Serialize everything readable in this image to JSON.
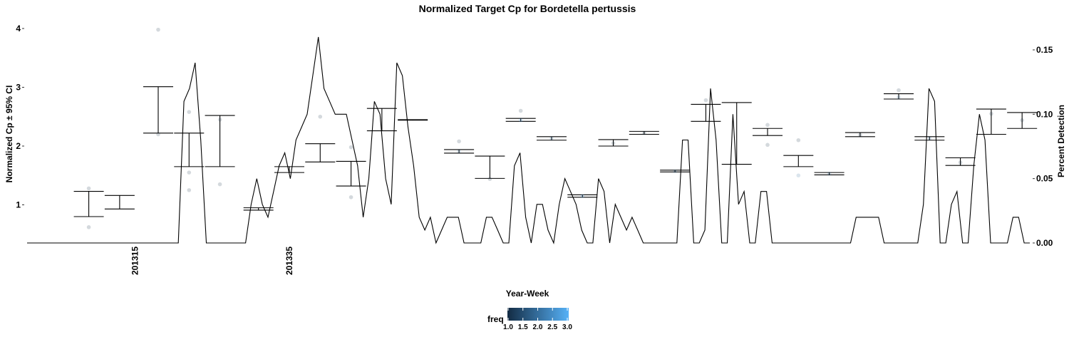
{
  "chart_data": {
    "type": "line",
    "title": "Normalized Target Cp for Bordetella pertussis",
    "xlabel": "Year-Week",
    "ylabel_left": "Normalized Cp  ± 95% CI",
    "ylabel_right": "Percent Detection",
    "x_ticks": [
      "201315",
      "201335"
    ],
    "y_left_ticks": [
      "1",
      "2",
      "3",
      "4"
    ],
    "y_right_ticks": [
      "0.00",
      "0.05",
      "0.10",
      "0.15"
    ],
    "grid": false,
    "legend": {
      "title": "freq",
      "position": "bottom",
      "ticks": [
        "1.0",
        "1.5",
        "2.0",
        "2.5",
        "3.0"
      ],
      "color_low": "#132B43",
      "color_high": "#56B1F7"
    },
    "error_bars": [
      {
        "x": 201309,
        "lo": 0.8,
        "hi": 1.23
      },
      {
        "x": 201313,
        "lo": 0.93,
        "hi": 1.16
      },
      {
        "x": 201318,
        "lo": 2.22,
        "hi": 3.01
      },
      {
        "x": 201322,
        "lo": 1.65,
        "hi": 2.22
      },
      {
        "x": 201326,
        "lo": 1.65,
        "hi": 2.52
      },
      {
        "x": 201331,
        "lo": 0.91,
        "hi": 0.95
      },
      {
        "x": 201335,
        "lo": 1.55,
        "hi": 1.65
      },
      {
        "x": 201339,
        "lo": 1.73,
        "hi": 2.04
      },
      {
        "x": 201343,
        "lo": 1.32,
        "hi": 1.74
      },
      {
        "x": 201347,
        "lo": 2.26,
        "hi": 2.64
      },
      {
        "x": 201351,
        "lo": 2.44,
        "hi": 2.45
      },
      {
        "x": 201405,
        "lo": 1.88,
        "hi": 1.94
      },
      {
        "x": 201409,
        "lo": 1.45,
        "hi": 1.83
      },
      {
        "x": 201413,
        "lo": 2.42,
        "hi": 2.47
      },
      {
        "x": 201417,
        "lo": 2.1,
        "hi": 2.16
      },
      {
        "x": 201421,
        "lo": 1.13,
        "hi": 1.17
      },
      {
        "x": 201425,
        "lo": 2.0,
        "hi": 2.11
      },
      {
        "x": 201429,
        "lo": 2.2,
        "hi": 2.25
      },
      {
        "x": 201433,
        "lo": 1.56,
        "hi": 1.59
      },
      {
        "x": 201437,
        "lo": 2.42,
        "hi": 2.71
      },
      {
        "x": 201441,
        "lo": 1.69,
        "hi": 2.74
      },
      {
        "x": 201445,
        "lo": 2.18,
        "hi": 2.3
      },
      {
        "x": 201449,
        "lo": 1.65,
        "hi": 1.84
      },
      {
        "x": 201501,
        "lo": 1.51,
        "hi": 1.55
      },
      {
        "x": 201505,
        "lo": 2.16,
        "hi": 2.23
      },
      {
        "x": 201510,
        "lo": 2.8,
        "hi": 2.89
      },
      {
        "x": 201514,
        "lo": 2.1,
        "hi": 2.16
      },
      {
        "x": 201518,
        "lo": 1.67,
        "hi": 1.8
      },
      {
        "x": 201522,
        "lo": 2.2,
        "hi": 2.63
      },
      {
        "x": 201526,
        "lo": 2.3,
        "hi": 2.57
      }
    ],
    "points": [
      {
        "x": 201309,
        "y": 0.62,
        "freq": 1
      },
      {
        "x": 201309,
        "y": 1.28,
        "freq": 1
      },
      {
        "x": 201318,
        "y": 3.98,
        "freq": 1
      },
      {
        "x": 201318,
        "y": 2.2,
        "freq": 1
      },
      {
        "x": 201322,
        "y": 2.58,
        "freq": 1
      },
      {
        "x": 201322,
        "y": 1.25,
        "freq": 1
      },
      {
        "x": 201322,
        "y": 1.55,
        "freq": 1
      },
      {
        "x": 201326,
        "y": 1.35,
        "freq": 1
      },
      {
        "x": 201326,
        "y": 2.45,
        "freq": 1
      },
      {
        "x": 201339,
        "y": 2.5,
        "freq": 1
      },
      {
        "x": 201343,
        "y": 1.13,
        "freq": 1
      },
      {
        "x": 201343,
        "y": 1.98,
        "freq": 1
      },
      {
        "x": 201405,
        "y": 1.91,
        "freq": 2
      },
      {
        "x": 201405,
        "y": 2.08,
        "freq": 1
      },
      {
        "x": 201409,
        "y": 1.44,
        "freq": 1
      },
      {
        "x": 201413,
        "y": 2.44,
        "freq": 3
      },
      {
        "x": 201413,
        "y": 2.6,
        "freq": 1
      },
      {
        "x": 201417,
        "y": 2.13,
        "freq": 2
      },
      {
        "x": 201421,
        "y": 1.15,
        "freq": 3
      },
      {
        "x": 201425,
        "y": 2.05,
        "freq": 1
      },
      {
        "x": 201429,
        "y": 2.22,
        "freq": 1
      },
      {
        "x": 201433,
        "y": 1.57,
        "freq": 2
      },
      {
        "x": 201437,
        "y": 2.78,
        "freq": 1
      },
      {
        "x": 201445,
        "y": 2.36,
        "freq": 1
      },
      {
        "x": 201445,
        "y": 2.02,
        "freq": 1
      },
      {
        "x": 201449,
        "y": 1.5,
        "freq": 2
      },
      {
        "x": 201449,
        "y": 2.1,
        "freq": 1
      },
      {
        "x": 201501,
        "y": 1.53,
        "freq": 2
      },
      {
        "x": 201505,
        "y": 2.19,
        "freq": 1
      },
      {
        "x": 201510,
        "y": 2.95,
        "freq": 1
      },
      {
        "x": 201510,
        "y": 2.83,
        "freq": 2
      },
      {
        "x": 201514,
        "y": 2.13,
        "freq": 2
      },
      {
        "x": 201518,
        "y": 1.72,
        "freq": 1
      },
      {
        "x": 201522,
        "y": 2.55,
        "freq": 1
      },
      {
        "x": 201526,
        "y": 2.44,
        "freq": 1
      }
    ],
    "detection_line": {
      "x_start": 201301,
      "x_end": 201527,
      "values": [
        0,
        0,
        0,
        0,
        0,
        0,
        0,
        0,
        0,
        0,
        0,
        0,
        0,
        0,
        0,
        0,
        0,
        0,
        0,
        0,
        0,
        0,
        0,
        0,
        0,
        0,
        0,
        0,
        0.11,
        0.12,
        0.14,
        0.08,
        0,
        0,
        0,
        0,
        0,
        0,
        0,
        0,
        0.03,
        0.05,
        0.03,
        0.02,
        0.04,
        0.06,
        0.07,
        0.05,
        0.08,
        0.09,
        0.1,
        0.13,
        0.16,
        0.12,
        0.11,
        0.1,
        0.1,
        0.1,
        0.08,
        0.06,
        0.02,
        0.05,
        0.11,
        0.1,
        0.05,
        0.03,
        0.14,
        0.13,
        0.09,
        0.06,
        0.02,
        0.01,
        0.02,
        0.0,
        0.01,
        0.02,
        0.02,
        0.02,
        0.0,
        0.0,
        0.0,
        0.0,
        0.02,
        0.02,
        0.01,
        0.0,
        0.0,
        0.06,
        0.07,
        0.02,
        0.0,
        0.03,
        0.03,
        0.01,
        0.0,
        0.03,
        0.05,
        0.04,
        0.03,
        0.01,
        0.0,
        0.0,
        0.05,
        0.04,
        0.0,
        0.03,
        0.02,
        0.01,
        0.02,
        0.01,
        0.0,
        0.0,
        0.0,
        0.0,
        0.0,
        0.0,
        0.0,
        0.08,
        0.08,
        0.0,
        0.0,
        0.01,
        0.12,
        0.08,
        0.0,
        0.0,
        0.1,
        0.03,
        0.04,
        0.0,
        0.0,
        0.04,
        0.04,
        0.0,
        0.0,
        0.0,
        0.0,
        0.0,
        0.0,
        0.0,
        0.0,
        0.0,
        0.0,
        0.0,
        0.0,
        0.0,
        0.0,
        0.0,
        0.02,
        0.02,
        0.02,
        0.02,
        0.02,
        0.0,
        0.0,
        0.0,
        0.0,
        0.0,
        0.0,
        0.0,
        0.03,
        0.12,
        0.11,
        0.0,
        0.0,
        0.03,
        0.04,
        0.0,
        0.0,
        0.06,
        0.1,
        0.08,
        0.0,
        0.0,
        0.0,
        0.0,
        0.02,
        0.02,
        0.0,
        0.0
      ]
    }
  }
}
